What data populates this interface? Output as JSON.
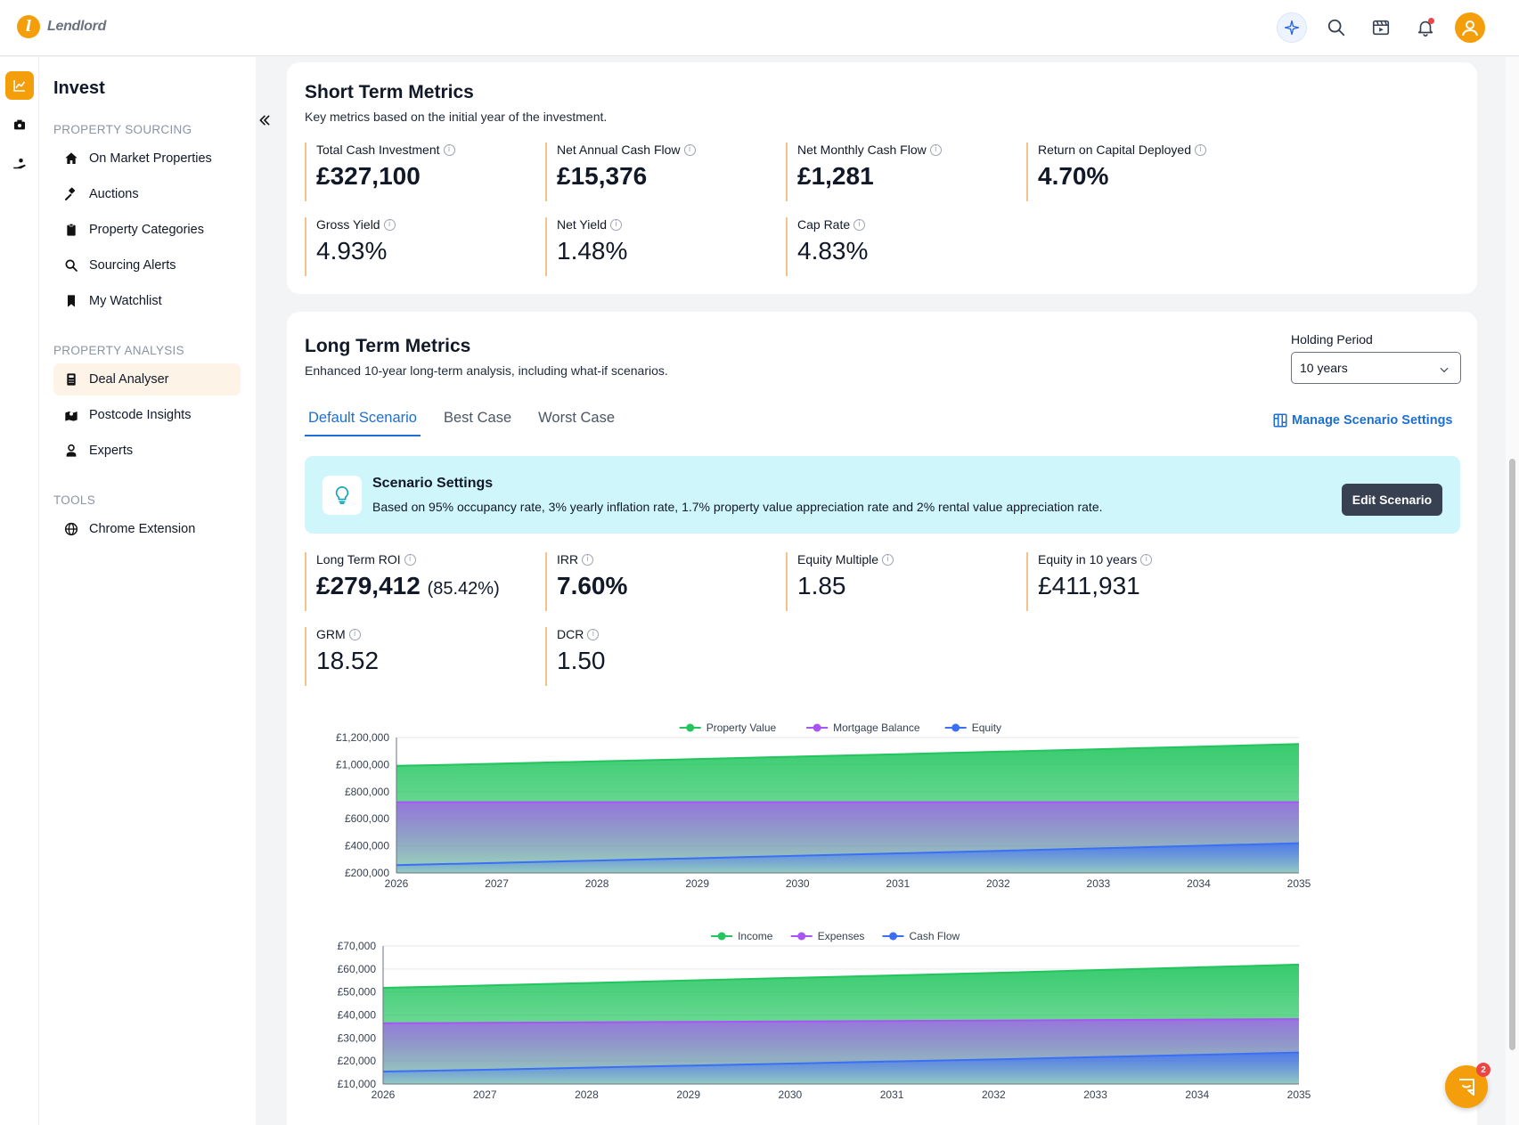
{
  "app": {
    "brand": "Lendlord"
  },
  "sidebar": {
    "title": "Invest",
    "sections": [
      {
        "label": "PROPERTY SOURCING",
        "items": [
          "On Market Properties",
          "Auctions",
          "Property Categories",
          "Sourcing Alerts",
          "My Watchlist"
        ]
      },
      {
        "label": "PROPERTY ANALYSIS",
        "items": [
          "Deal Analyser",
          "Postcode Insights",
          "Experts"
        ]
      },
      {
        "label": "TOOLS",
        "items": [
          "Chrome Extension"
        ]
      }
    ],
    "active_item": "Deal Analyser"
  },
  "short_term": {
    "title": "Short Term Metrics",
    "subtitle": "Key metrics based on the initial year of the investment.",
    "metrics": [
      {
        "label": "Total Cash Investment",
        "value": "£327,100"
      },
      {
        "label": "Net Annual Cash Flow",
        "value": "£15,376"
      },
      {
        "label": "Net Monthly Cash Flow",
        "value": "£1,281"
      },
      {
        "label": "Return on Capital Deployed",
        "value": "4.70%"
      },
      {
        "label": "Gross Yield",
        "value": "4.93%"
      },
      {
        "label": "Net Yield",
        "value": "1.48%"
      },
      {
        "label": "Cap Rate",
        "value": "4.83%"
      }
    ]
  },
  "long_term": {
    "title": "Long Term Metrics",
    "subtitle": "Enhanced 10-year long-term analysis, including what-if scenarios.",
    "holding_period": {
      "label": "Holding Period",
      "value": "10 years"
    },
    "tabs": [
      "Default Scenario",
      "Best Case",
      "Worst Case"
    ],
    "active_tab": "Default Scenario",
    "manage_link": "Manage Scenario Settings",
    "banner": {
      "title": "Scenario Settings",
      "text": "Based on 95% occupancy rate, 3% yearly inflation rate, 1.7% property value appreciation rate and 2% rental value appreciation rate.",
      "button": "Edit Scenario"
    },
    "metrics": [
      {
        "label": "Long Term ROI",
        "value": "£279,412",
        "sub": "(85.42%)"
      },
      {
        "label": "IRR",
        "value": "7.60%"
      },
      {
        "label": "Equity Multiple",
        "value": "1.85"
      },
      {
        "label": "Equity in 10 years",
        "value": "£411,931"
      },
      {
        "label": "GRM",
        "value": "18.52"
      },
      {
        "label": "DCR",
        "value": "1.50"
      }
    ]
  },
  "chart_data": [
    {
      "type": "area",
      "x": [
        "2026",
        "2027",
        "2028",
        "2029",
        "2030",
        "2031",
        "2032",
        "2033",
        "2034",
        "2035"
      ],
      "series": [
        {
          "name": "Property Value",
          "values": [
            990000,
            1006800,
            1023900,
            1041300,
            1059000,
            1077000,
            1095300,
            1113900,
            1132800,
            1152100
          ]
        },
        {
          "name": "Mortgage Balance",
          "values": [
            722500,
            722500,
            722500,
            722500,
            722500,
            722500,
            722500,
            722500,
            722500,
            722500
          ]
        },
        {
          "name": "Equity",
          "values": [
            257500,
            274300,
            291400,
            308800,
            326500,
            344500,
            362800,
            381400,
            400300,
            419600
          ]
        }
      ],
      "ylim": [
        200000,
        1200000
      ],
      "yticks": [
        "£1,200,000",
        "£1,000,000",
        "£800,000",
        "£600,000",
        "£400,000",
        "£200,000"
      ],
      "ytick_values": [
        1200000,
        1000000,
        800000,
        600000,
        400000,
        200000
      ],
      "legend": "top-center",
      "colors": [
        "#22c55e",
        "#a855f7",
        "#3b6ff5"
      ]
    },
    {
      "type": "area",
      "x": [
        "2026",
        "2027",
        "2028",
        "2029",
        "2030",
        "2031",
        "2032",
        "2033",
        "2034",
        "2035"
      ],
      "series": [
        {
          "name": "Income",
          "values": [
            51800,
            52800,
            53900,
            55000,
            56100,
            57200,
            58300,
            59500,
            60700,
            61900
          ]
        },
        {
          "name": "Expenses",
          "values": [
            36400,
            36600,
            36800,
            37000,
            37200,
            37400,
            37600,
            37800,
            38000,
            38200
          ]
        },
        {
          "name": "Cash Flow",
          "values": [
            15400,
            16200,
            17100,
            18000,
            18900,
            19800,
            20700,
            21700,
            22700,
            23700
          ]
        }
      ],
      "ylim": [
        10000,
        70000
      ],
      "yticks": [
        "£70,000",
        "£60,000",
        "£50,000",
        "£40,000",
        "£30,000",
        "£20,000",
        "£10,000"
      ],
      "ytick_values": [
        70000,
        60000,
        50000,
        40000,
        30000,
        20000,
        10000
      ],
      "legend": "top-center",
      "colors": [
        "#22c55e",
        "#a855f7",
        "#3b6ff5"
      ]
    }
  ],
  "chat": {
    "badge": "2"
  }
}
